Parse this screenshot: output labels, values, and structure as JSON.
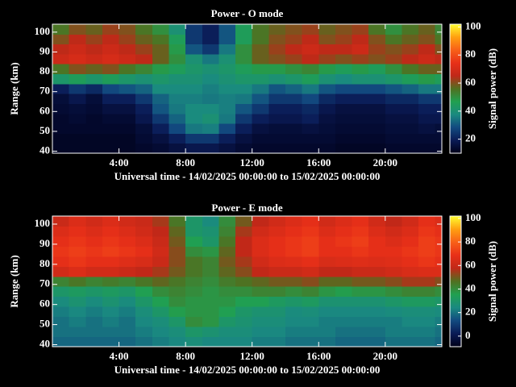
{
  "chart_data": [
    {
      "type": "heatmap",
      "title": "Power - O mode",
      "x_label": "Universal time - 14/02/2025 00:00:00 to 15/02/2025 00:00:00",
      "y_label": "Range (km)",
      "colorbar_label": "Signal power (dB)",
      "xlim": [
        0,
        23.4
      ],
      "ylim": [
        39,
        104
      ],
      "xticks": [
        {
          "value": 4,
          "label": "4:00"
        },
        {
          "value": 8,
          "label": "8:00"
        },
        {
          "value": 12,
          "label": "12:00"
        },
        {
          "value": 16,
          "label": "16:00"
        },
        {
          "value": 20,
          "label": "20:00"
        }
      ],
      "yticks": [
        40,
        50,
        60,
        70,
        80,
        90,
        100
      ],
      "clim": [
        10,
        102
      ],
      "cticks": [
        20,
        40,
        60,
        80,
        100
      ],
      "colormap": [
        "#000018",
        "#0a1a55",
        "#124a80",
        "#1a8a80",
        "#20a050",
        "#507020",
        "#c02818",
        "#e83018",
        "#f86018",
        "#ffa010",
        "#ffff30"
      ],
      "x_bins": [
        0,
        1,
        2,
        3,
        4,
        5,
        6,
        7,
        8,
        9,
        10,
        11,
        12,
        13,
        14,
        15,
        16,
        17,
        18,
        19,
        20,
        21,
        22,
        23,
        23.4
      ],
      "y_bins": [
        39,
        44,
        49,
        54,
        59,
        64,
        69,
        74,
        79,
        84,
        89,
        94,
        99,
        104
      ],
      "values": [
        [
          12,
          12,
          12,
          12,
          12,
          13,
          14,
          16,
          18,
          18,
          16,
          14,
          13,
          13,
          13,
          13,
          13,
          12,
          12,
          12,
          13,
          13,
          13,
          13
        ],
        [
          12,
          12,
          12,
          12,
          12,
          14,
          16,
          20,
          25,
          25,
          20,
          16,
          14,
          14,
          14,
          14,
          14,
          13,
          13,
          13,
          14,
          14,
          14,
          14
        ],
        [
          13,
          13,
          13,
          13,
          13,
          15,
          20,
          28,
          35,
          36,
          28,
          20,
          16,
          15,
          15,
          16,
          15,
          14,
          14,
          14,
          15,
          15,
          16,
          15
        ],
        [
          13,
          14,
          13,
          14,
          14,
          18,
          25,
          32,
          38,
          40,
          35,
          25,
          20,
          18,
          18,
          20,
          16,
          15,
          15,
          15,
          16,
          16,
          18,
          18
        ],
        [
          14,
          15,
          14,
          16,
          16,
          20,
          30,
          35,
          38,
          38,
          36,
          30,
          25,
          20,
          20,
          22,
          18,
          16,
          16,
          16,
          18,
          18,
          20,
          20
        ],
        [
          15,
          18,
          15,
          20,
          20,
          25,
          32,
          36,
          36,
          35,
          36,
          35,
          30,
          25,
          25,
          28,
          22,
          20,
          20,
          20,
          22,
          22,
          25,
          25
        ],
        [
          20,
          25,
          22,
          28,
          30,
          32,
          38,
          38,
          38,
          36,
          38,
          38,
          35,
          30,
          32,
          35,
          30,
          28,
          28,
          28,
          30,
          32,
          35,
          35
        ],
        [
          42,
          45,
          42,
          45,
          42,
          40,
          42,
          40,
          40,
          38,
          40,
          42,
          42,
          40,
          42,
          45,
          40,
          38,
          40,
          40,
          42,
          45,
          48,
          45
        ],
        [
          55,
          60,
          58,
          60,
          55,
          52,
          48,
          45,
          42,
          40,
          42,
          45,
          48,
          48,
          50,
          52,
          48,
          45,
          48,
          45,
          50,
          55,
          58,
          58
        ],
        [
          68,
          70,
          68,
          70,
          68,
          65,
          58,
          50,
          40,
          35,
          40,
          50,
          58,
          60,
          62,
          65,
          62,
          60,
          62,
          60,
          62,
          65,
          68,
          65
        ],
        [
          65,
          68,
          65,
          68,
          65,
          62,
          58,
          48,
          30,
          25,
          35,
          50,
          58,
          62,
          65,
          68,
          65,
          65,
          68,
          62,
          60,
          62,
          65,
          60
        ],
        [
          60,
          65,
          62,
          65,
          62,
          58,
          55,
          45,
          25,
          20,
          30,
          45,
          55,
          60,
          62,
          65,
          60,
          62,
          65,
          60,
          55,
          58,
          60,
          55
        ],
        [
          55,
          60,
          58,
          62,
          60,
          55,
          50,
          40,
          25,
          20,
          30,
          45,
          55,
          58,
          60,
          62,
          58,
          60,
          62,
          55,
          50,
          55,
          58,
          52
        ]
      ]
    },
    {
      "type": "heatmap",
      "title": "Power - E mode",
      "x_label": "Universal time - 14/02/2025 00:00:00 to 15/02/2025 00:00:00",
      "y_label": "Range (km)",
      "colorbar_label": "Signal power (dB)",
      "xlim": [
        0,
        23.4
      ],
      "ylim": [
        39,
        104
      ],
      "xticks": [
        {
          "value": 4,
          "label": "4:00"
        },
        {
          "value": 8,
          "label": "8:00"
        },
        {
          "value": 12,
          "label": "12:00"
        },
        {
          "value": 16,
          "label": "16:00"
        },
        {
          "value": 20,
          "label": "20:00"
        }
      ],
      "yticks": [
        40,
        50,
        60,
        70,
        80,
        90,
        100
      ],
      "clim": [
        -9,
        102
      ],
      "cticks": [
        0,
        20,
        40,
        60,
        80,
        100
      ],
      "colormap": [
        "#000018",
        "#0a1a55",
        "#124a80",
        "#1a8a80",
        "#20a050",
        "#507020",
        "#c02818",
        "#e83018",
        "#f86018",
        "#ffa010",
        "#ffff30"
      ],
      "x_bins": [
        0,
        1,
        2,
        3,
        4,
        5,
        6,
        7,
        8,
        9,
        10,
        11,
        12,
        13,
        14,
        15,
        16,
        17,
        18,
        19,
        20,
        21,
        22,
        23,
        23.4
      ],
      "y_bins": [
        39,
        44,
        49,
        54,
        59,
        64,
        69,
        74,
        79,
        84,
        89,
        94,
        99,
        104
      ],
      "values": [
        [
          18,
          18,
          18,
          18,
          18,
          20,
          22,
          24,
          26,
          24,
          24,
          24,
          22,
          22,
          20,
          20,
          20,
          18,
          18,
          18,
          20,
          20,
          20,
          18
        ],
        [
          20,
          20,
          20,
          20,
          20,
          22,
          24,
          26,
          30,
          28,
          26,
          26,
          24,
          24,
          22,
          22,
          22,
          20,
          20,
          20,
          22,
          22,
          22,
          20
        ],
        [
          20,
          22,
          20,
          22,
          20,
          24,
          26,
          30,
          40,
          38,
          30,
          28,
          26,
          26,
          24,
          24,
          22,
          22,
          22,
          22,
          22,
          24,
          24,
          22
        ],
        [
          22,
          24,
          22,
          24,
          22,
          26,
          30,
          36,
          38,
          38,
          35,
          30,
          28,
          28,
          25,
          26,
          24,
          24,
          24,
          24,
          25,
          26,
          26,
          25
        ],
        [
          25,
          28,
          25,
          28,
          25,
          30,
          35,
          40,
          38,
          38,
          38,
          35,
          35,
          32,
          30,
          32,
          28,
          28,
          28,
          28,
          30,
          32,
          32,
          30
        ],
        [
          30,
          32,
          30,
          32,
          30,
          35,
          40,
          42,
          40,
          38,
          40,
          40,
          42,
          42,
          40,
          42,
          38,
          36,
          38,
          38,
          40,
          42,
          42,
          40
        ],
        [
          42,
          45,
          42,
          44,
          42,
          45,
          48,
          45,
          42,
          40,
          44,
          46,
          48,
          50,
          50,
          52,
          48,
          48,
          50,
          50,
          52,
          55,
          55,
          52
        ],
        [
          62,
          65,
          62,
          62,
          60,
          58,
          55,
          50,
          45,
          42,
          48,
          52,
          58,
          60,
          60,
          62,
          58,
          58,
          60,
          60,
          62,
          64,
          65,
          65
        ],
        [
          68,
          70,
          68,
          68,
          66,
          64,
          60,
          52,
          45,
          42,
          50,
          55,
          62,
          65,
          66,
          68,
          64,
          65,
          66,
          65,
          66,
          68,
          70,
          68
        ],
        [
          70,
          72,
          70,
          72,
          70,
          68,
          62,
          52,
          40,
          38,
          48,
          58,
          65,
          68,
          70,
          72,
          68,
          68,
          70,
          68,
          68,
          70,
          72,
          70
        ],
        [
          68,
          70,
          68,
          70,
          68,
          65,
          60,
          50,
          35,
          30,
          45,
          58,
          65,
          68,
          70,
          72,
          68,
          70,
          72,
          68,
          65,
          68,
          72,
          70
        ],
        [
          65,
          68,
          65,
          68,
          65,
          62,
          58,
          48,
          30,
          28,
          42,
          55,
          62,
          65,
          68,
          70,
          65,
          68,
          70,
          65,
          62,
          65,
          70,
          68
        ],
        [
          60,
          65,
          62,
          65,
          62,
          60,
          55,
          45,
          30,
          25,
          40,
          50,
          58,
          62,
          65,
          68,
          62,
          65,
          68,
          62,
          58,
          62,
          68,
          65
        ]
      ]
    }
  ]
}
